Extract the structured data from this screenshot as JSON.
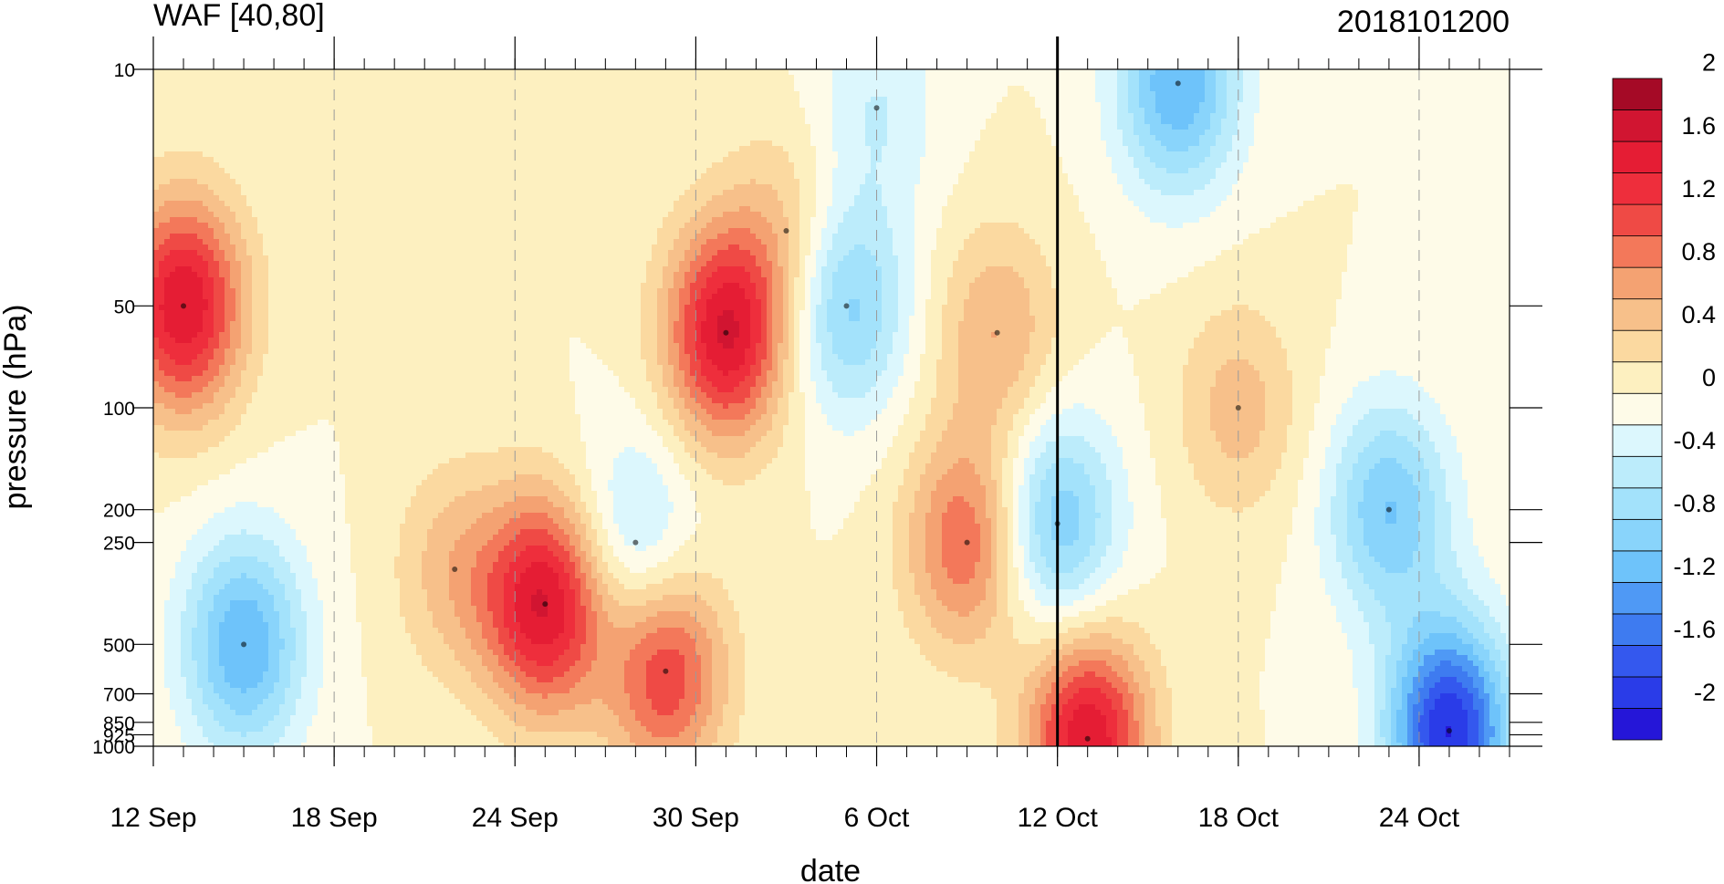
{
  "chart_data": {
    "type": "heatmap",
    "title": "WAF [40,80]",
    "date_label": "2018101200",
    "xlabel": "date",
    "ylabel": "pressure (hPa)",
    "x_start": "2018-09-12",
    "x_end": "2018-10-27",
    "x_ticks": [
      {
        "date": "2018-09-12",
        "label": "12 Sep"
      },
      {
        "date": "2018-09-18",
        "label": "18 Sep"
      },
      {
        "date": "2018-09-24",
        "label": "24 Sep"
      },
      {
        "date": "2018-09-30",
        "label": "30 Sep"
      },
      {
        "date": "2018-10-06",
        "label": "6 Oct"
      },
      {
        "date": "2018-10-12",
        "label": "12 Oct"
      },
      {
        "date": "2018-10-18",
        "label": "18 Oct"
      },
      {
        "date": "2018-10-24",
        "label": "24 Oct"
      }
    ],
    "y_scale": "log",
    "y_range": [
      1000,
      10
    ],
    "y_ticks": [
      {
        "value": 10,
        "label": "10"
      },
      {
        "value": 50,
        "label": "50"
      },
      {
        "value": 100,
        "label": "100"
      },
      {
        "value": 200,
        "label": "200"
      },
      {
        "value": 250,
        "label": "250"
      },
      {
        "value": 500,
        "label": "500"
      },
      {
        "value": 700,
        "label": "700"
      },
      {
        "value": 850,
        "label": "850"
      },
      {
        "value": 925,
        "label": "925"
      },
      {
        "value": 1000,
        "label": "1000"
      }
    ],
    "highlight_date": "2018-10-12",
    "contour_levels": [
      -2.2,
      -2,
      -1.8,
      -1.6,
      -1.4,
      -1.2,
      -1,
      -0.8,
      -0.6,
      -0.4,
      -0.2,
      0,
      0.2,
      0.4,
      0.6,
      0.8,
      1,
      1.2,
      1.4,
      1.6,
      1.8,
      2,
      2.2
    ],
    "colorbar": {
      "colors": [
        "#2516d8",
        "#2a3ce8",
        "#3458ee",
        "#3e7bf0",
        "#4f99f5",
        "#6ec3fa",
        "#89d4fb",
        "#a3e2fb",
        "#bcecfb",
        "#dcf7fd",
        "#fefbe8",
        "#fdf0c0",
        "#fbd9a0",
        "#f7c08a",
        "#f4a272",
        "#f3785a",
        "#ef4a45",
        "#ee2e3c",
        "#e51d34",
        "#d11531",
        "#a50a26"
      ],
      "labels": [
        "-2",
        "-1.6",
        "-1.2",
        "-0.8",
        "-0.4",
        "0",
        "0.4",
        "0.8",
        "1.2",
        "1.6",
        "2"
      ]
    },
    "features": [
      {
        "date": "2018-09-13",
        "p": 50,
        "value": 1.6
      },
      {
        "date": "2018-09-15",
        "p": 500,
        "value": -1.2
      },
      {
        "date": "2018-09-22",
        "p": 300,
        "value": 0.5
      },
      {
        "date": "2018-09-25",
        "p": 380,
        "value": 1.6
      },
      {
        "date": "2018-09-28",
        "p": 250,
        "value": -0.6
      },
      {
        "date": "2018-09-29",
        "p": 600,
        "value": 1.2
      },
      {
        "date": "2018-10-01",
        "p": 60,
        "value": 1.6
      },
      {
        "date": "2018-10-03",
        "p": 30,
        "value": 0.4
      },
      {
        "date": "2018-10-05",
        "p": 50,
        "value": -0.9
      },
      {
        "date": "2018-10-06",
        "p": 13,
        "value": -0.4
      },
      {
        "date": "2018-10-09",
        "p": 250,
        "value": 1.0
      },
      {
        "date": "2018-10-10",
        "p": 60,
        "value": 0.6
      },
      {
        "date": "2018-10-12",
        "p": 220,
        "value": -1.0
      },
      {
        "date": "2018-10-13",
        "p": 950,
        "value": 1.6
      },
      {
        "date": "2018-10-16",
        "p": 11,
        "value": -1.2
      },
      {
        "date": "2018-10-18",
        "p": 100,
        "value": 0.5
      },
      {
        "date": "2018-10-23",
        "p": 200,
        "value": -1.0
      },
      {
        "date": "2018-10-25",
        "p": 900,
        "value": -2.0
      }
    ]
  }
}
